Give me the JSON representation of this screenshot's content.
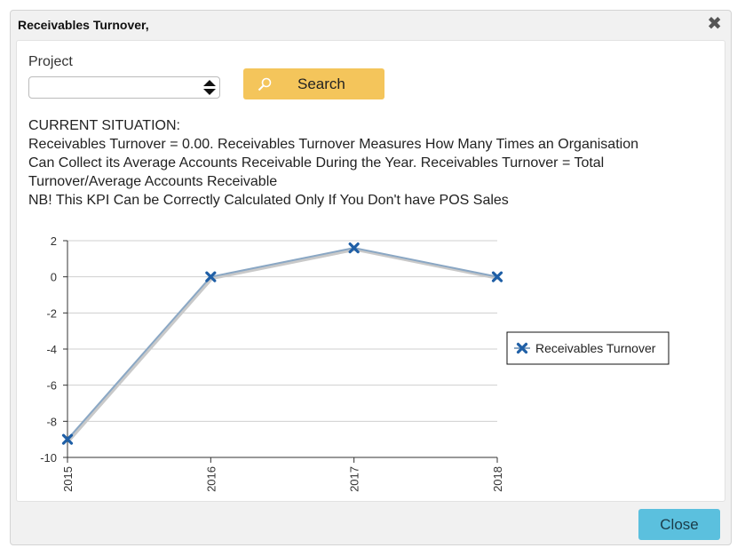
{
  "dialog": {
    "title": "Receivables Turnover,",
    "close_glyph": "✖"
  },
  "form": {
    "project_label": "Project",
    "project_value": "",
    "search_label": "Search",
    "search_icon": "search-icon"
  },
  "situation": {
    "lines": [
      "CURRENT SITUATION:",
      "Receivables Turnover = 0.00. Receivables Turnover Measures How Many Times an Organisation",
      "Can Collect its Average Accounts Receivable During the Year. Receivables Turnover = Total",
      "Turnover/Average Accounts Receivable",
      "NB! This KPI Can be Correctly Calculated Only If You Don't have POS Sales"
    ]
  },
  "chart_data": {
    "type": "line",
    "x": [
      "2015",
      "2016",
      "2017",
      "2018"
    ],
    "series": [
      {
        "name": "Receivables Turnover",
        "values": [
          -9,
          0,
          1.6,
          0
        ],
        "color": "#1f5fa6"
      }
    ],
    "yticks": [
      2,
      0,
      -2,
      -4,
      -6,
      -8,
      -10
    ],
    "ylim": [
      -10,
      2
    ],
    "grid": true,
    "legend": "right",
    "title": "",
    "xlabel": "",
    "ylabel": ""
  },
  "footer": {
    "close_label": "Close"
  }
}
